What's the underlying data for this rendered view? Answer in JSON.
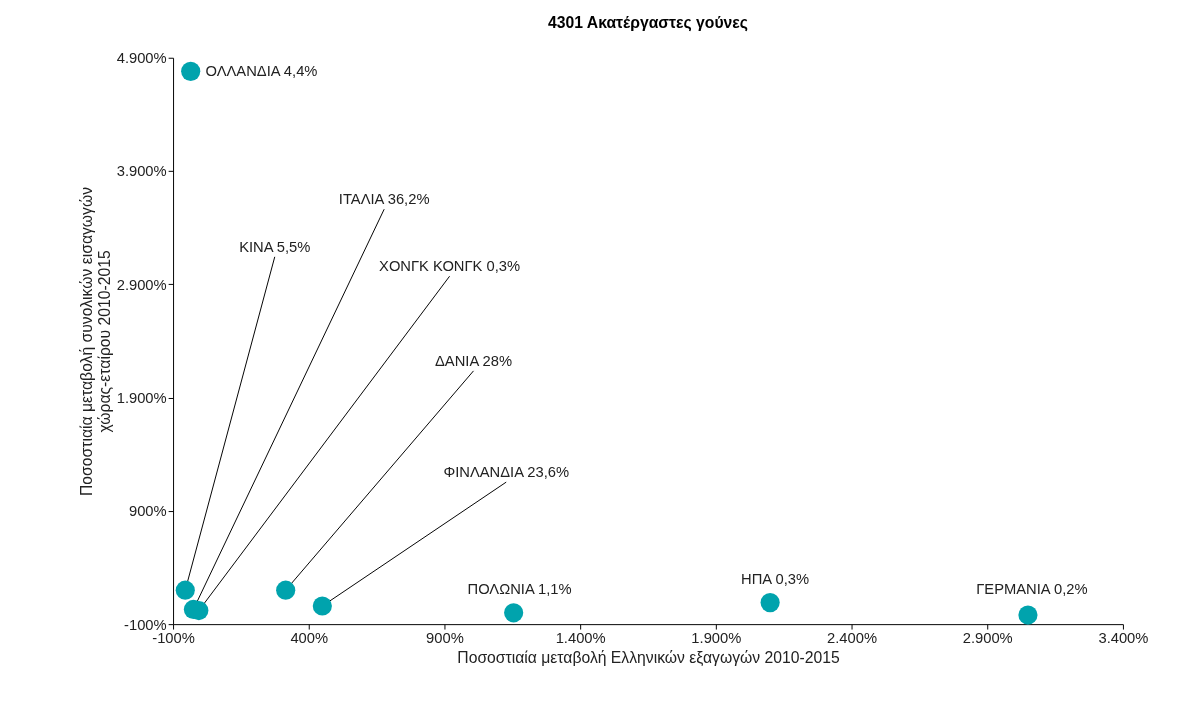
{
  "chart_data": {
    "type": "scatter",
    "title": "4301 Ακατέργαστες γούνες",
    "xlabel": "Ποσοστιαία μεταβολή Ελληνικών εξαγωγών 2010-2015",
    "ylabel": [
      "Ποσοστιαία μεταβολή συνολικών εισαγωγών",
      "χώρας-εταίρου 2010-2015"
    ],
    "x": [
      -35,
      -55,
      -25,
      -5,
      315,
      450,
      1155,
      2100,
      3050
    ],
    "values": [
      4780,
      200,
      30,
      20,
      200,
      60,
      0,
      90,
      -20
    ],
    "value_labels": [
      "ΟΛΛΑΝΔΙΑ 4,4%",
      "ΚΙΝΑ 5,5%",
      "ΙΤΑΛΙΑ 36,2%",
      "ΧΟΝΓΚ ΚΟΝΓΚ 0,3%",
      "ΔΑΝΙΑ 28%",
      "ΦΙΝΛΑΝΔΙΑ 23,6%",
      "ΠΟΛΩΝΙΑ 1,1%",
      "ΗΠΑ 0,3%",
      "ΓΕΡΜΑΝΙΑ 0,2%"
    ],
    "color": "#00a3ad",
    "marker": "circle",
    "xlim": [
      -100,
      3400
    ],
    "xticks": [
      {
        "value": -100,
        "label": "-100%"
      },
      {
        "value": 400,
        "label": "400%"
      },
      {
        "value": 900,
        "label": "900%"
      },
      {
        "value": 1400,
        "label": "1.400%"
      },
      {
        "value": 1900,
        "label": "1.900%"
      },
      {
        "value": 2400,
        "label": "2.400%"
      },
      {
        "value": 2900,
        "label": "2.900%"
      },
      {
        "value": 3400,
        "label": "3.400%"
      }
    ],
    "ylim": [
      -100,
      4900
    ],
    "yticks": [
      {
        "value": -100,
        "label": "-100%"
      },
      {
        "value": 900,
        "label": "900%"
      },
      {
        "value": 1900,
        "label": "1.900%"
      },
      {
        "value": 2900,
        "label": "2.900%"
      },
      {
        "value": 3900,
        "label": "3.900%"
      },
      {
        "value": 4900,
        "label": "4.900%"
      }
    ]
  }
}
